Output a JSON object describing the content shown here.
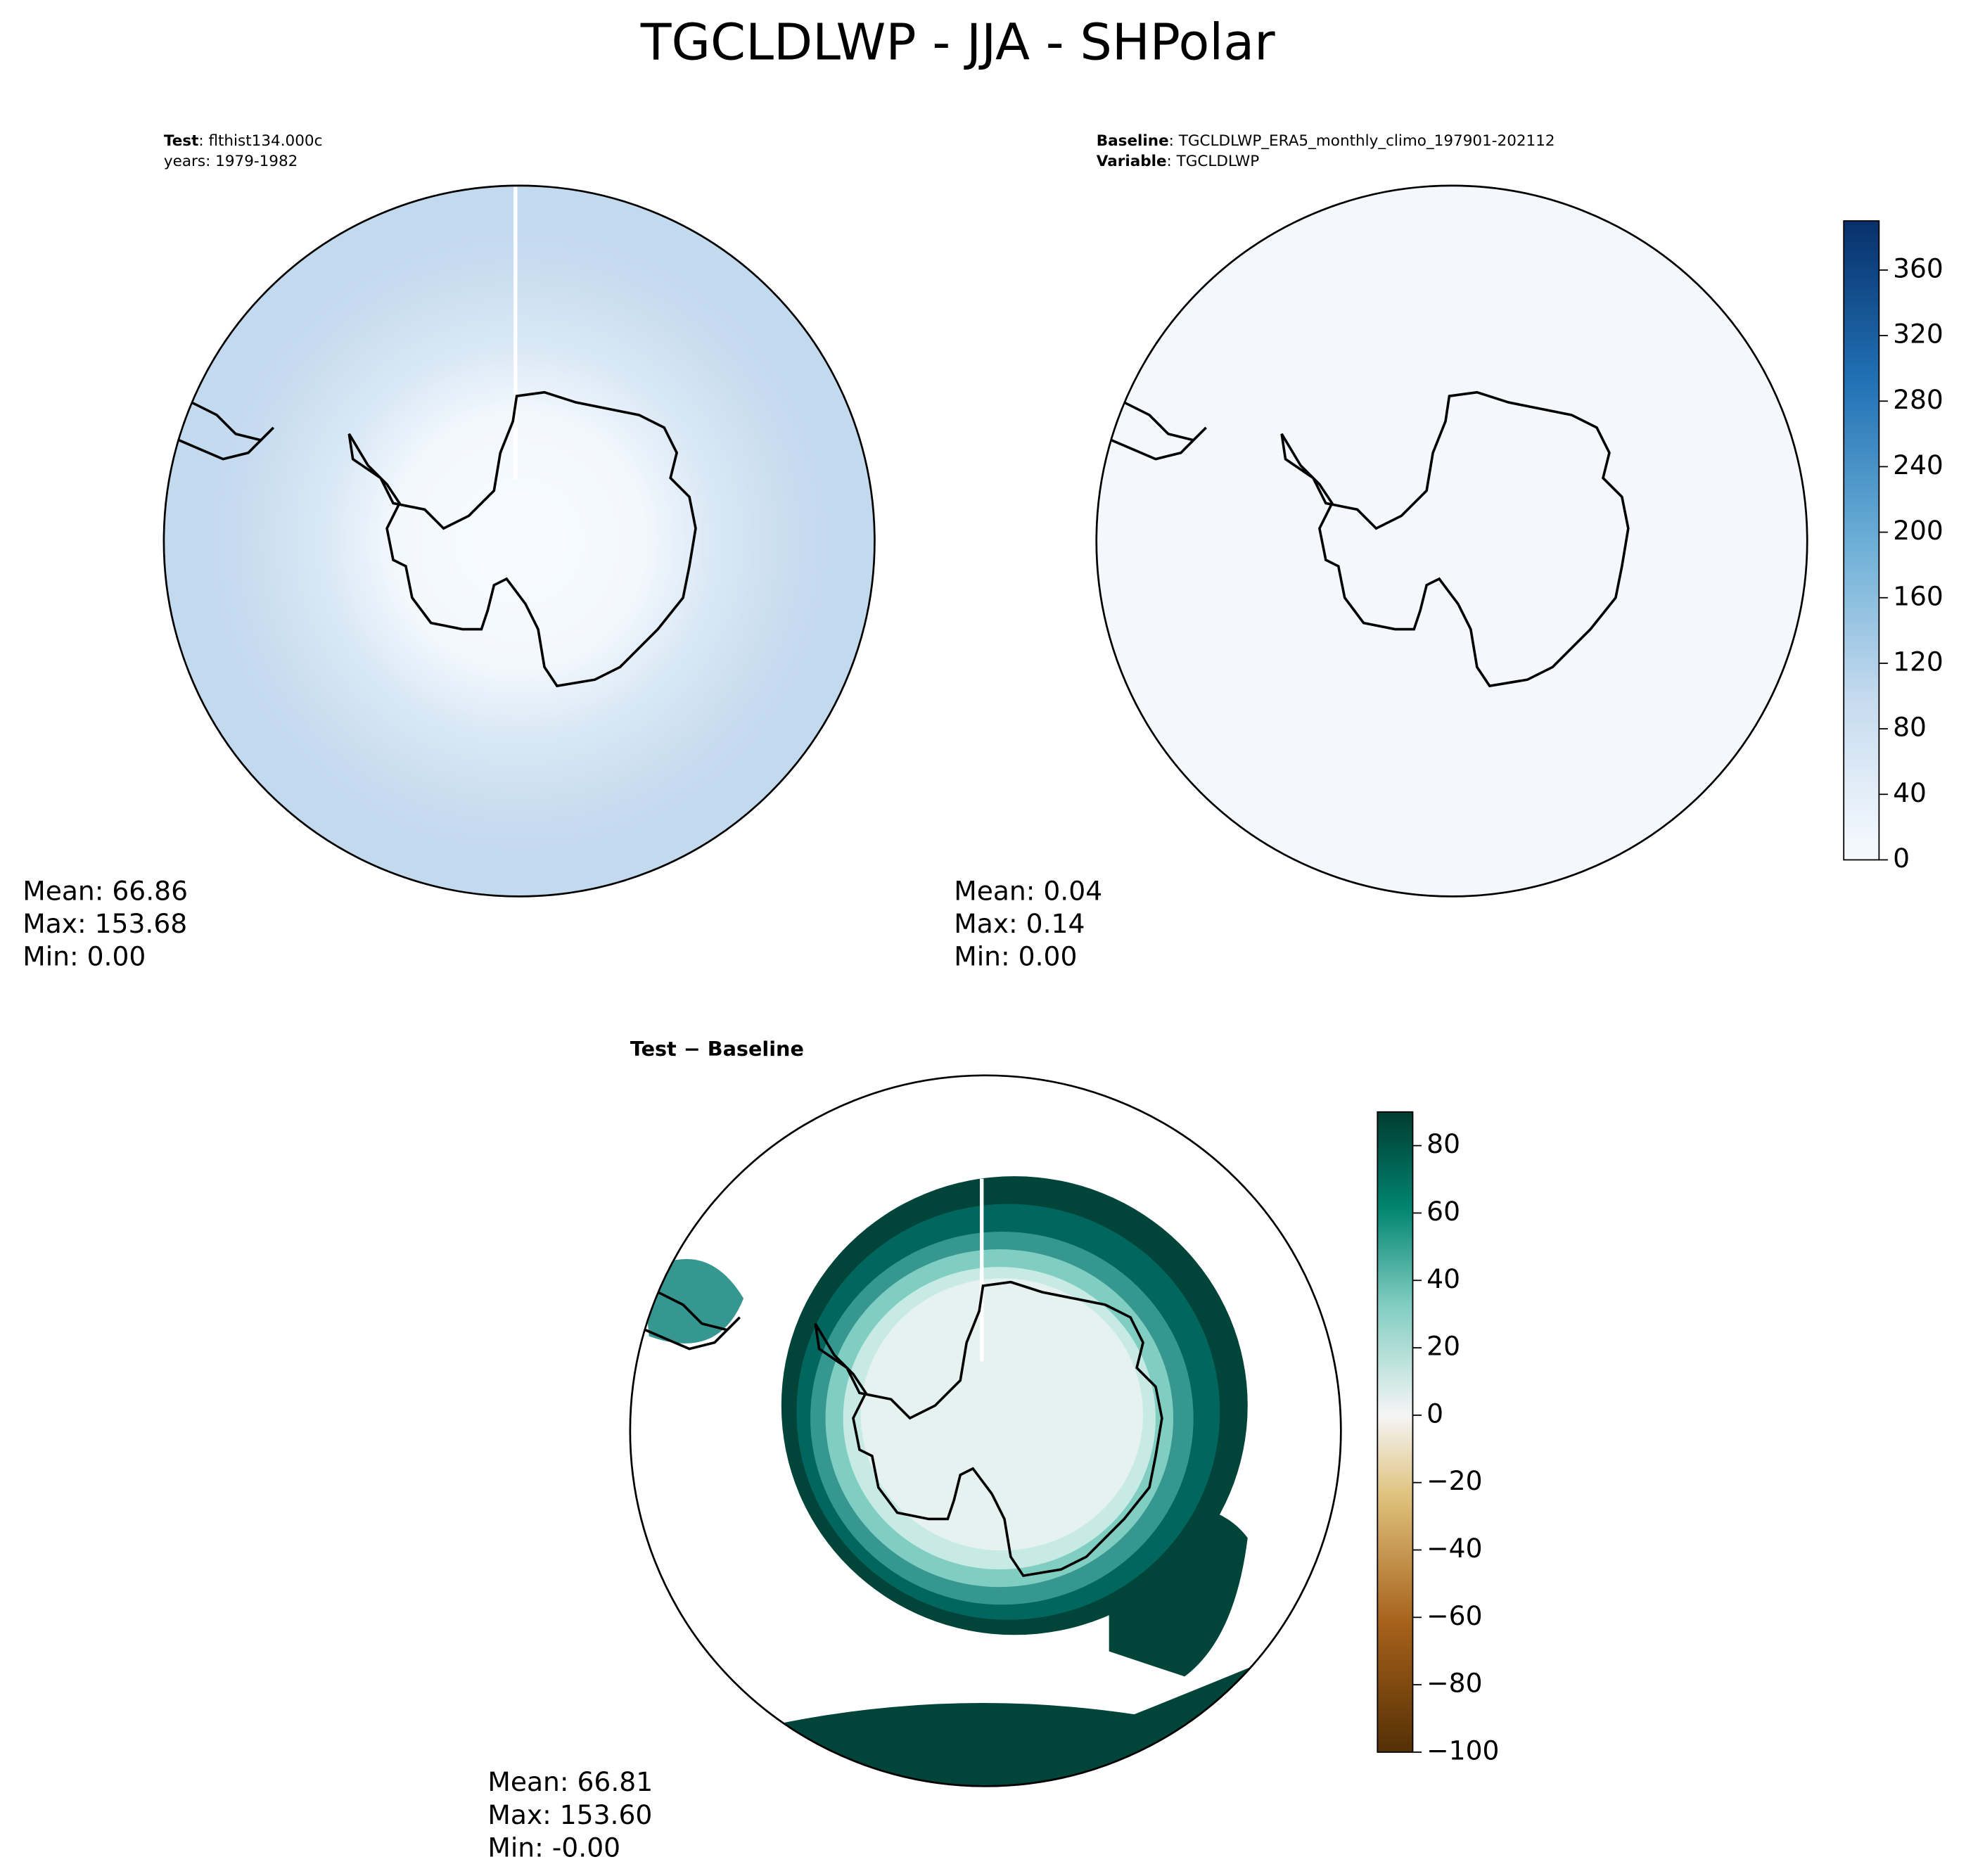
{
  "title": "TGCLDLWP - JJA - SHPolar",
  "panels": [
    {
      "header": [
        {
          "key": "Test",
          "text": ": flthist134.000c"
        },
        {
          "key": null,
          "text": "years: 1979-1982"
        }
      ],
      "stats": [
        "Mean: 66.86",
        "Max: 153.68",
        "Min:  0.00"
      ]
    },
    {
      "header": [
        {
          "key": "Baseline",
          "text": ": TGCLDLWP_ERA5_monthly_climo_197901-202112"
        },
        {
          "key": "Variable",
          "text": ": TGCLDLWP"
        }
      ],
      "stats": [
        "Mean:  0.04",
        "Max:  0.14",
        "Min:  0.00"
      ]
    },
    {
      "header": [
        {
          "key": "Test − Baseline",
          "text": null
        }
      ],
      "stats": [
        "Mean: 66.81",
        "Max: 153.60",
        "Min: -0.00"
      ]
    }
  ],
  "colorbars": [
    {
      "ylim": [
        0,
        390
      ],
      "yticks": [
        0,
        40,
        80,
        120,
        160,
        200,
        240,
        280,
        320,
        360
      ]
    },
    {
      "ylim": [
        -100,
        90
      ],
      "yticks": [
        {
          "value": -100,
          "label": "−100"
        },
        {
          "value": -80,
          "label": "−80"
        },
        {
          "value": -60,
          "label": "−60"
        },
        {
          "value": -40,
          "label": "−40"
        },
        {
          "value": -20,
          "label": "−20"
        },
        0,
        20,
        40,
        60,
        80
      ]
    }
  ]
}
